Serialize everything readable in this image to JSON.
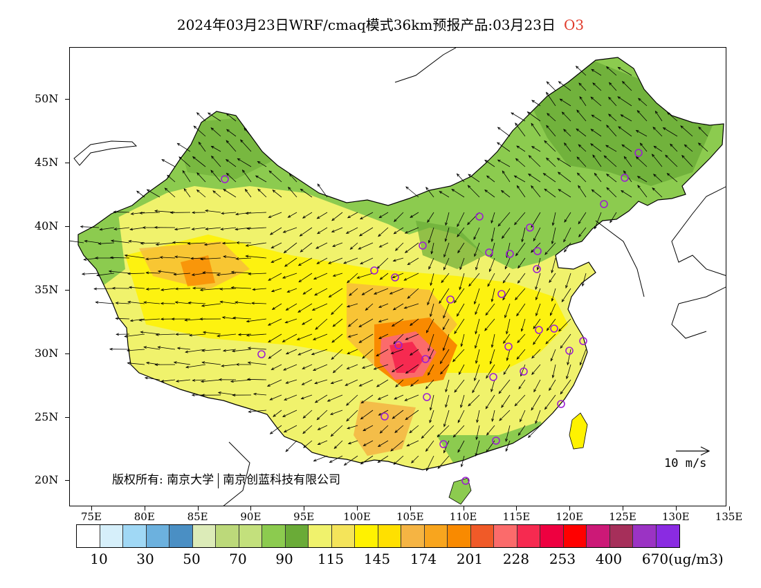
{
  "header": {
    "title": "2024年03月23日WRF/cmaq模式36km预报产品:03月23日",
    "pollutant": "O3"
  },
  "axes": {
    "lat_labels": [
      "50N",
      "45N",
      "40N",
      "35N",
      "30N",
      "25N",
      "20N"
    ],
    "lon_labels": [
      "75E",
      "80E",
      "85E",
      "90E",
      "95E",
      "100E",
      "105E",
      "110E",
      "115E",
      "120E",
      "125E",
      "130E",
      "135E"
    ]
  },
  "map": {
    "copyright_prefix": "版权所有:",
    "copyright_org1": "南京大学",
    "copyright_org2": "南京创蓝科技有限公司",
    "wind_reference": "10 m/s"
  },
  "legend": {
    "colors": [
      "#ffffff",
      "#d6effa",
      "#a0d8f5",
      "#6cb1de",
      "#4a8fc4",
      "#dcebb8",
      "#bcd97a",
      "#c3e07c",
      "#8ccb4f",
      "#6aab37",
      "#f0f26c",
      "#f4e45a",
      "#fff200",
      "#ffe000",
      "#f5b443",
      "#f8a51e",
      "#f98a00",
      "#f05a28",
      "#fb6b6b",
      "#f62a50",
      "#ee0040",
      "#ff0000",
      "#cc1977",
      "#a62f5a",
      "#9b33c4",
      "#8a2be2"
    ],
    "labels": [
      "10",
      "30",
      "50",
      "70",
      "90",
      "115",
      "145",
      "174",
      "201",
      "228",
      "253",
      "400",
      "670"
    ],
    "unit": "(ug/m3)"
  }
}
